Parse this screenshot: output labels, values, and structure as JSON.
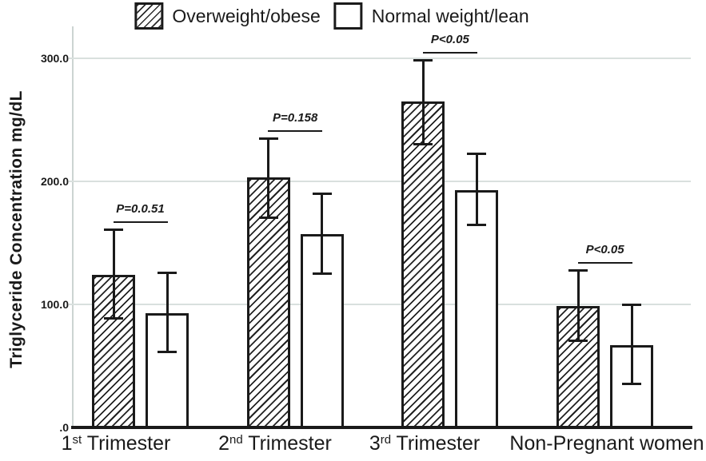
{
  "colors": {
    "ink": "#1a1a1a",
    "grid": "#d9e0de",
    "axis_line": "#ccd4d2",
    "background": "#ffffff"
  },
  "chart_data": {
    "type": "bar",
    "title": "",
    "xlabel": "",
    "ylabel": "Triglyceride Concentration mg/dL",
    "categories": [
      "1st Trimester",
      "2nd Trimester",
      "3rd Trimester",
      "Non-Pregnant women"
    ],
    "series": [
      {
        "name": "Overweight/obese",
        "pattern": "diagonal-hatch",
        "values": [
          124,
          203,
          265,
          99
        ],
        "error_high": [
          161,
          235,
          299,
          128
        ],
        "error_low": [
          88,
          170,
          230,
          70
        ]
      },
      {
        "name": "Normal weight/lean",
        "pattern": "plain-white",
        "values": [
          93,
          157,
          193,
          67
        ],
        "error_high": [
          126,
          190,
          223,
          100
        ],
        "error_low": [
          61,
          125,
          164,
          35
        ]
      }
    ],
    "p_values": [
      "P=0.0.51",
      "P=0.158",
      "P<0.05",
      "P<0.05"
    ],
    "yticks": [
      {
        "value": 0,
        "label": ".0"
      },
      {
        "value": 100,
        "label": "100.0"
      },
      {
        "value": 200,
        "label": "200.0"
      },
      {
        "value": 300,
        "label": "300.0"
      }
    ],
    "ylim": [
      0,
      325
    ],
    "grid": true,
    "legend_position": "top-center"
  }
}
